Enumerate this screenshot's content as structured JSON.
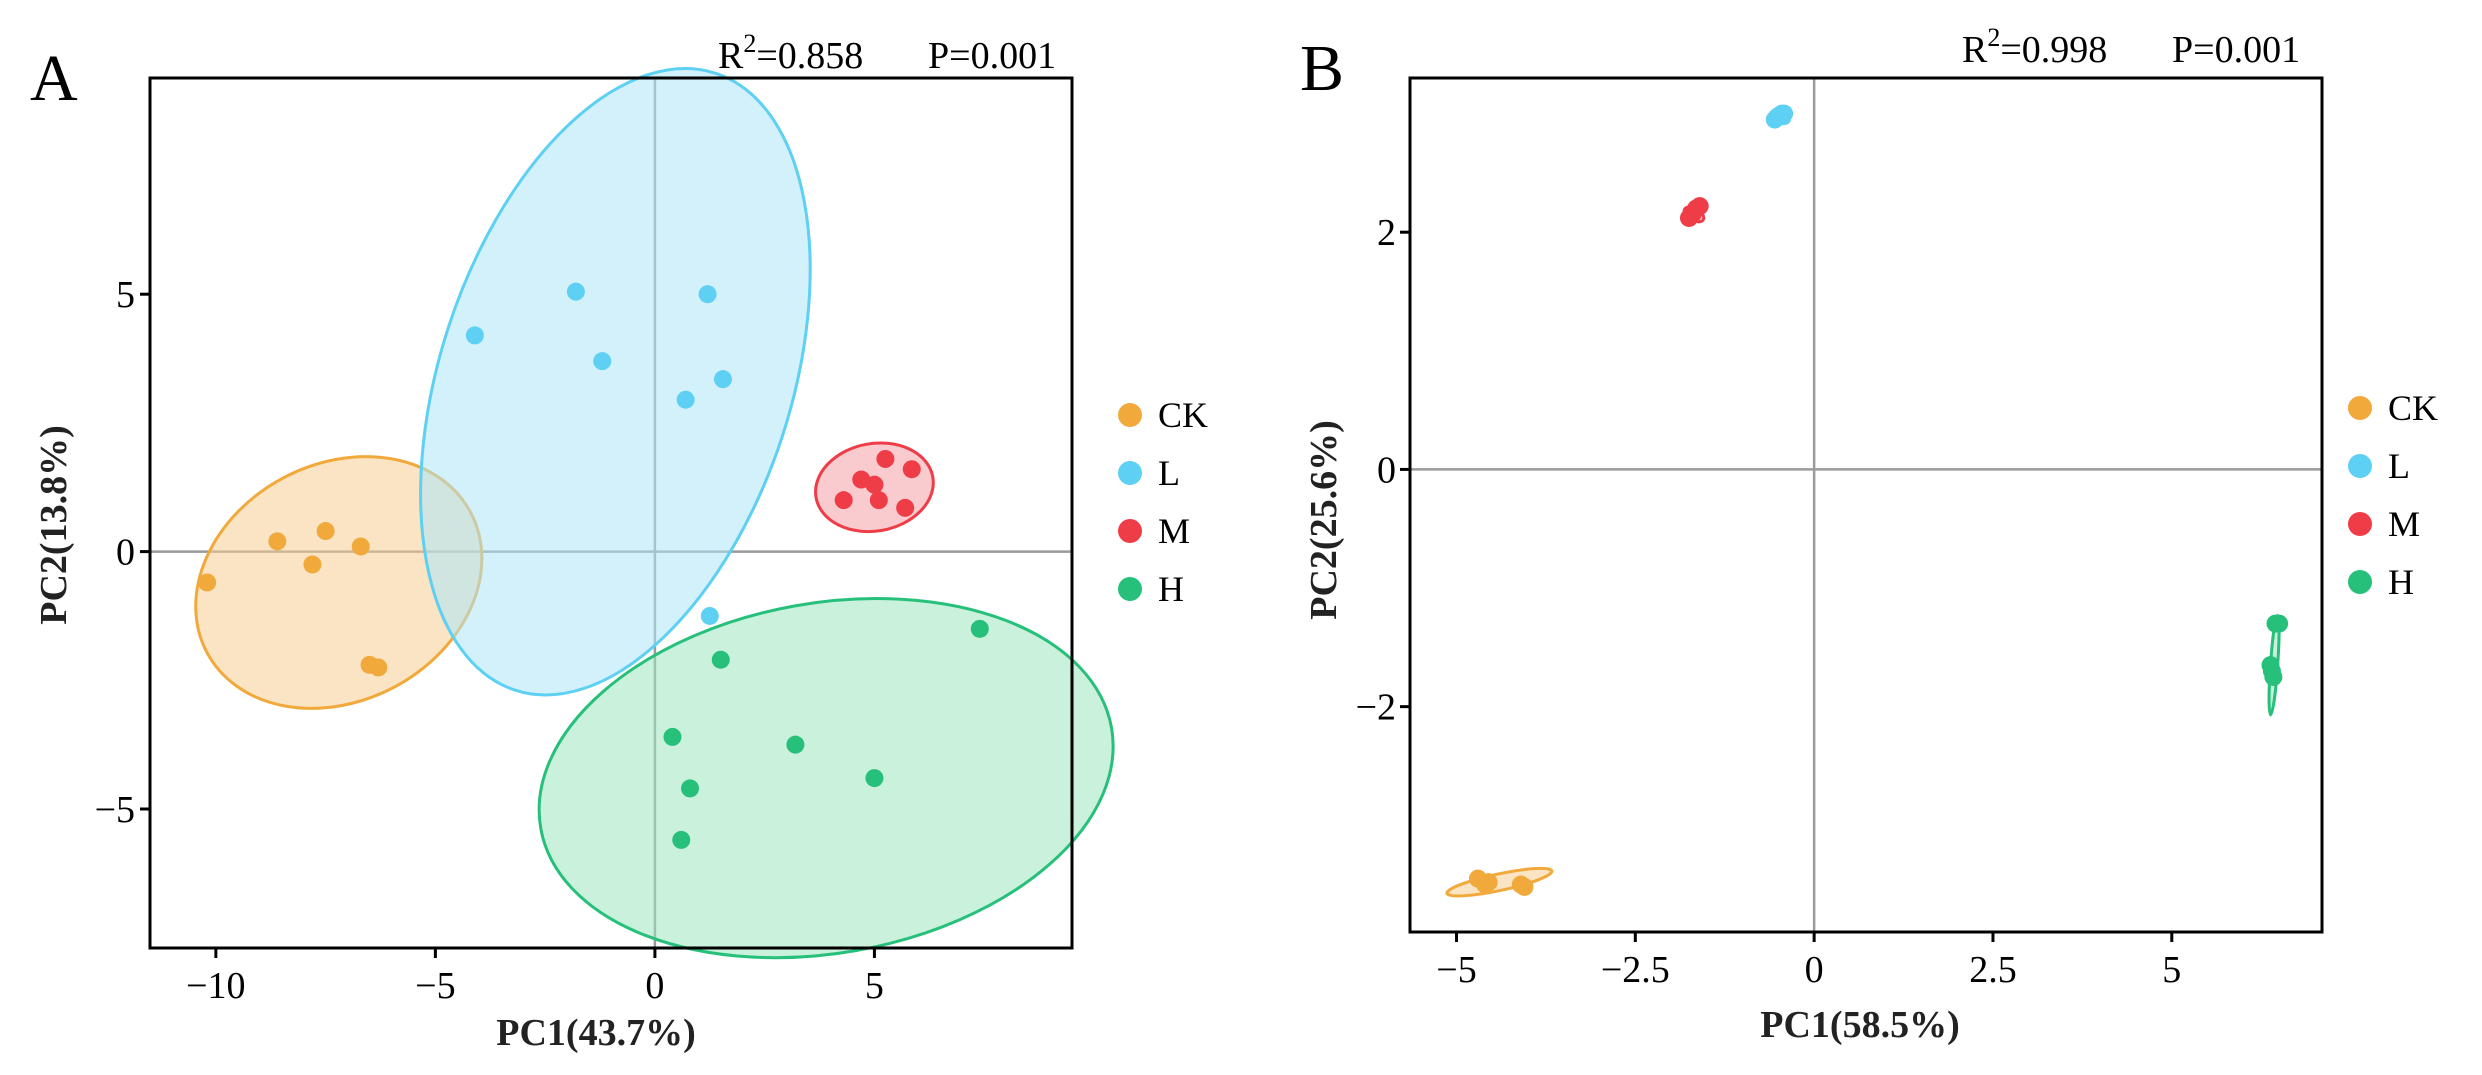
{
  "chart_data": [
    {
      "type": "scatter",
      "panel": "A",
      "r2_label": "R",
      "r2_sup": "2",
      "r2_value": "=0.858",
      "p_value": "P=0.001",
      "xlabel": "PC1(43.7%)",
      "ylabel": "PC2(13.8%)",
      "xlim": [
        -11.5,
        9.5
      ],
      "ylim": [
        -7.7,
        9.2
      ],
      "xticks": [
        -10,
        -5,
        0,
        5
      ],
      "xtick_labels": [
        "−10",
        "−5",
        "0",
        "5"
      ],
      "yticks": [
        -5,
        0,
        5
      ],
      "ytick_labels": [
        "−5",
        "0",
        "5"
      ],
      "zero_lines": true,
      "legend": [
        "CK",
        "L",
        "M",
        "H"
      ],
      "series": [
        {
          "name": "CK",
          "color": "#f0a93a",
          "fill": "#f6cd93",
          "points": [
            [
              -10.2,
              -0.6
            ],
            [
              -8.6,
              0.2
            ],
            [
              -7.5,
              0.4
            ],
            [
              -7.8,
              -0.25
            ],
            [
              -6.7,
              0.1
            ],
            [
              -6.5,
              -2.2
            ],
            [
              -6.3,
              -2.25
            ]
          ],
          "ellipse": {
            "cx": -7.2,
            "cy": -0.6,
            "rx": 3.4,
            "ry": 2.3,
            "angle": -28
          }
        },
        {
          "name": "L",
          "color": "#5dd0f3",
          "fill": "#aee6f8",
          "points": [
            [
              -4.1,
              4.2
            ],
            [
              -1.8,
              5.05
            ],
            [
              -1.2,
              3.7
            ],
            [
              1.2,
              5.0
            ],
            [
              0.7,
              2.95
            ],
            [
              1.55,
              3.35
            ],
            [
              1.25,
              -1.25
            ]
          ],
          "ellipse": {
            "cx": -0.9,
            "cy": 3.3,
            "rx": 4.0,
            "ry": 6.3,
            "angle": 18
          }
        },
        {
          "name": "M",
          "color": "#ef3d48",
          "fill": "#f6a1a6",
          "points": [
            [
              4.3,
              1.0
            ],
            [
              4.7,
              1.4
            ],
            [
              5.0,
              1.3
            ],
            [
              5.1,
              1.0
            ],
            [
              5.25,
              1.8
            ],
            [
              5.7,
              0.85
            ],
            [
              5.85,
              1.6
            ]
          ],
          "ellipse": {
            "cx": 5.0,
            "cy": 1.25,
            "rx": 1.35,
            "ry": 0.85,
            "angle": -10
          }
        },
        {
          "name": "H",
          "color": "#27c07b",
          "fill": "#9de6c0",
          "points": [
            [
              1.5,
              -2.1
            ],
            [
              7.4,
              -1.5
            ],
            [
              0.4,
              -3.6
            ],
            [
              3.2,
              -3.75
            ],
            [
              0.8,
              -4.6
            ],
            [
              5.0,
              -4.4
            ],
            [
              0.6,
              -5.6
            ]
          ],
          "ellipse": {
            "cx": 3.9,
            "cy": -4.4,
            "rx": 6.6,
            "ry": 3.4,
            "angle": -10
          }
        }
      ]
    },
    {
      "type": "scatter",
      "panel": "B",
      "r2_label": "R",
      "r2_sup": "2",
      "r2_value": "=0.998",
      "p_value": "P=0.001",
      "xlabel": "PC1(58.5%)",
      "ylabel": "PC2(25.6%)",
      "xlim": [
        -5.65,
        7.1
      ],
      "ylim": [
        -3.9,
        3.3
      ],
      "xticks": [
        -5,
        -2.5,
        0,
        2.5,
        5
      ],
      "xtick_labels": [
        "−5",
        "−2.5",
        "0",
        "2.5",
        "5"
      ],
      "yticks": [
        -2,
        0,
        2
      ],
      "ytick_labels": [
        "−2",
        "0",
        "2"
      ],
      "zero_lines": true,
      "legend": [
        "CK",
        "L",
        "M",
        "H"
      ],
      "series": [
        {
          "name": "CK",
          "color": "#f0a93a",
          "fill": "#f6cd93",
          "points": [
            [
              -4.7,
              -3.45
            ],
            [
              -4.6,
              -3.5
            ],
            [
              -4.55,
              -3.48
            ],
            [
              -4.05,
              -3.52
            ],
            [
              -4.1,
              -3.5
            ]
          ],
          "ellipse": {
            "cx": -4.4,
            "cy": -3.48,
            "rx": 0.75,
            "ry": 0.07,
            "angle": -12
          }
        },
        {
          "name": "L",
          "color": "#5dd0f3",
          "fill": "#aee6f8",
          "points": [
            [
              -0.55,
              2.95
            ],
            [
              -0.45,
              3.0
            ],
            [
              -0.5,
              2.98
            ],
            [
              -0.42,
              3.0
            ]
          ],
          "ellipse": {
            "cx": -0.48,
            "cy": 2.97,
            "rx": 0.14,
            "ry": 0.05,
            "angle": 20
          }
        },
        {
          "name": "M",
          "color": "#ef3d48",
          "fill": "#f6a1a6",
          "points": [
            [
              -1.75,
              2.12
            ],
            [
              -1.65,
              2.2
            ],
            [
              -1.6,
              2.22
            ],
            [
              -1.7,
              2.15
            ]
          ],
          "ellipse": {
            "cx": -1.68,
            "cy": 2.15,
            "rx": 0.15,
            "ry": 0.05,
            "angle": 30
          }
        },
        {
          "name": "H",
          "color": "#27c07b",
          "fill": "#9de6c0",
          "points": [
            [
              6.5,
              -1.3
            ],
            [
              6.45,
              -1.3
            ],
            [
              6.38,
              -1.65
            ],
            [
              6.4,
              -1.7
            ],
            [
              6.42,
              -1.75
            ]
          ],
          "ellipse": {
            "cx": 6.43,
            "cy": -1.65,
            "rx": 0.05,
            "ry": 0.42,
            "angle": 4
          }
        }
      ]
    }
  ]
}
